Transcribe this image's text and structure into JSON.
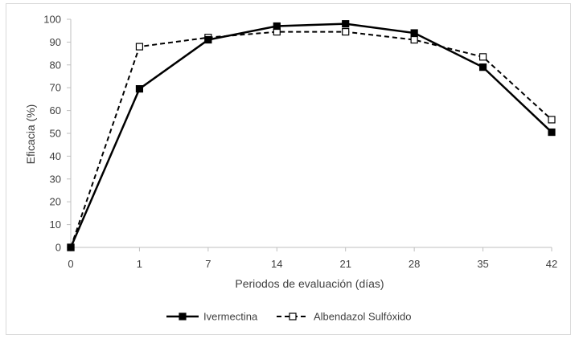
{
  "chart_data": {
    "type": "line",
    "title": "",
    "xlabel": "Periodos de evaluación (días)",
    "ylabel": "Eficacia (%)",
    "categories": [
      "0",
      "1",
      "7",
      "14",
      "21",
      "28",
      "35",
      "42"
    ],
    "ylim": [
      0,
      100
    ],
    "yticks": [
      0,
      10,
      20,
      30,
      40,
      50,
      60,
      70,
      80,
      90,
      100
    ],
    "grid": false,
    "legend_position": "bottom",
    "series": [
      {
        "name": "Ivermectina",
        "values": [
          0,
          69.5,
          91,
          97,
          98,
          94,
          79,
          50.5
        ],
        "line_style": "solid",
        "marker": "filled-square",
        "color": "#000000"
      },
      {
        "name": "Albendazol Sulfóxido",
        "values": [
          0,
          88,
          92,
          94.5,
          94.5,
          91,
          83.5,
          56
        ],
        "line_style": "dashed",
        "marker": "hollow-square",
        "color": "#000000"
      }
    ]
  }
}
